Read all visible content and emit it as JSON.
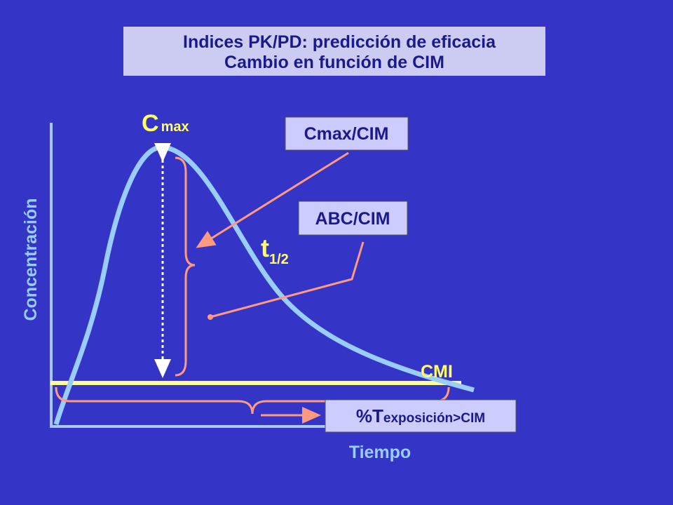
{
  "header": {
    "title": "Indices PK/PD: predicción de eficacia",
    "subtitle": "Cambio en función de CIM"
  },
  "labels": {
    "cmax": {
      "main": "C",
      "sub": "max"
    },
    "half_life": {
      "main": "t",
      "sub": "1/2"
    },
    "mic_line": "CMI"
  },
  "boxes": {
    "cmax_ratio": "Cmax/CIM",
    "auc_ratio": "ABC/CIM",
    "time_above": {
      "main": "%T",
      "sub": "exposición>CIM"
    }
  },
  "axes": {
    "y_label": "Concentración",
    "x_label": "Tiempo"
  }
}
